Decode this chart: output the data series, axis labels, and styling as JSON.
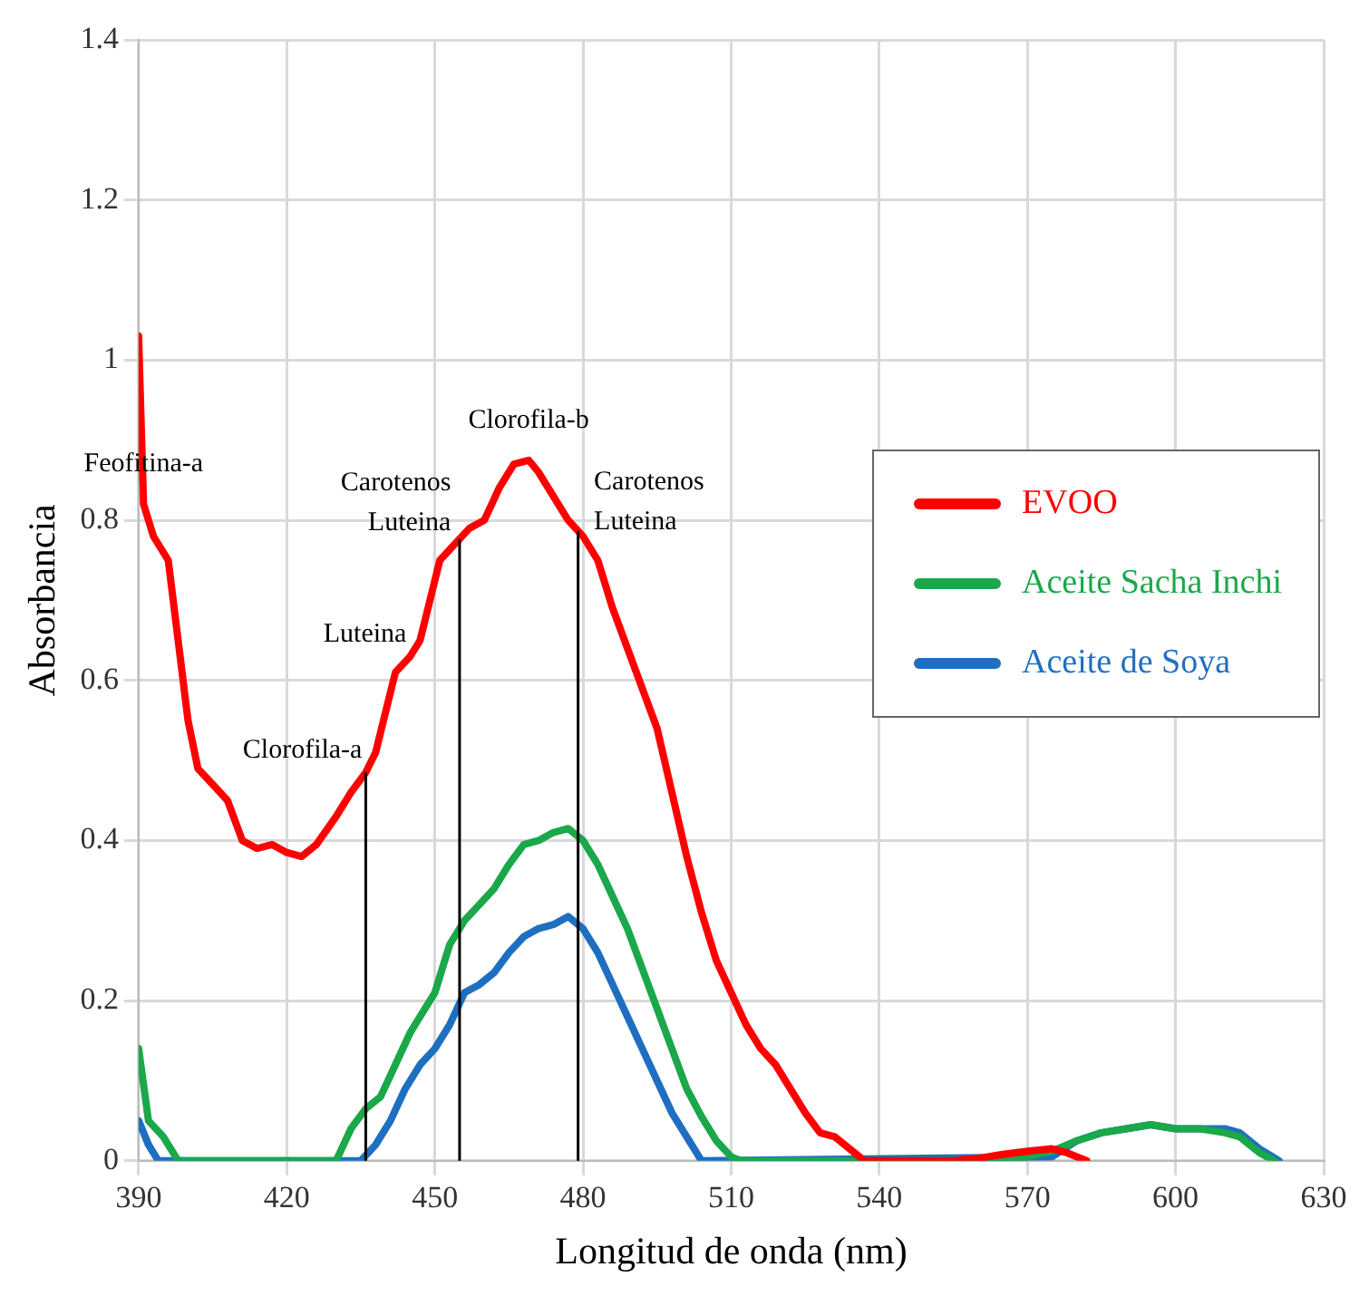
{
  "chart_data": {
    "type": "line",
    "xlabel": "Longitud de onda (nm)",
    "ylabel": "Absorbancia",
    "xlim": [
      390,
      630
    ],
    "xticks": [
      390,
      420,
      450,
      480,
      510,
      540,
      570,
      600,
      630
    ],
    "ylim": [
      0,
      1.4
    ],
    "yticks": [
      0,
      0.2,
      0.4,
      0.6,
      0.8,
      1,
      1.2,
      1.4
    ],
    "grid": true,
    "legend": "right",
    "marker": "none",
    "line_style": "solid",
    "series": [
      {
        "name": "EVOO",
        "color": "#ff0000",
        "x": [
          390,
          391,
          393,
          396,
          398,
          400,
          402,
          405,
          408,
          411,
          414,
          417,
          420,
          423,
          426,
          430,
          433,
          436,
          438,
          440,
          442,
          445,
          447,
          449,
          451,
          454,
          457,
          460,
          463,
          466,
          469,
          471,
          474,
          477,
          480,
          483,
          486,
          489,
          492,
          495,
          498,
          501,
          504,
          507,
          510,
          513,
          516,
          519,
          522,
          525,
          528,
          531,
          534,
          537,
          555,
          560,
          565,
          570,
          575,
          578,
          582
        ],
        "values": [
          1.03,
          0.82,
          0.78,
          0.75,
          0.65,
          0.55,
          0.49,
          0.47,
          0.45,
          0.4,
          0.39,
          0.395,
          0.385,
          0.38,
          0.395,
          0.43,
          0.46,
          0.485,
          0.51,
          0.56,
          0.61,
          0.63,
          0.65,
          0.7,
          0.75,
          0.77,
          0.79,
          0.8,
          0.84,
          0.87,
          0.875,
          0.86,
          0.83,
          0.8,
          0.78,
          0.75,
          0.69,
          0.64,
          0.59,
          0.54,
          0.46,
          0.38,
          0.31,
          0.25,
          0.21,
          0.17,
          0.14,
          0.12,
          0.09,
          0.06,
          0.035,
          0.03,
          0.015,
          0,
          0,
          0.003,
          0.008,
          0.012,
          0.015,
          0.01,
          0
        ]
      },
      {
        "name": "Aceite Sacha Inchi",
        "color": "#1aa84a",
        "x": [
          390,
          392,
          395,
          397,
          398,
          430,
          433,
          436,
          439,
          442,
          445,
          448,
          450,
          453,
          456,
          459,
          462,
          465,
          468,
          471,
          474,
          477,
          480,
          483,
          486,
          489,
          492,
          495,
          498,
          501,
          504,
          507,
          510,
          512,
          565,
          570,
          575,
          580,
          585,
          590,
          595,
          600,
          605,
          610,
          613,
          617,
          620
        ],
        "values": [
          0.14,
          0.05,
          0.03,
          0.01,
          0,
          0,
          0.04,
          0.065,
          0.08,
          0.12,
          0.16,
          0.19,
          0.21,
          0.27,
          0.3,
          0.32,
          0.34,
          0.37,
          0.395,
          0.4,
          0.41,
          0.415,
          0.4,
          0.37,
          0.33,
          0.29,
          0.24,
          0.19,
          0.14,
          0.09,
          0.055,
          0.025,
          0.005,
          0,
          0,
          0.005,
          0.012,
          0.025,
          0.035,
          0.04,
          0.045,
          0.04,
          0.04,
          0.035,
          0.03,
          0.01,
          0
        ]
      },
      {
        "name": "Aceite de Soya",
        "color": "#1f6fc0",
        "x": [
          390,
          392,
          394,
          435,
          438,
          441,
          444,
          447,
          450,
          453,
          456,
          459,
          462,
          465,
          468,
          471,
          474,
          477,
          480,
          483,
          486,
          489,
          492,
          495,
          498,
          501,
          504,
          575,
          580,
          585,
          590,
          595,
          600,
          605,
          610,
          613,
          617,
          621
        ],
        "values": [
          0.05,
          0.02,
          0,
          0,
          0.02,
          0.05,
          0.09,
          0.12,
          0.14,
          0.17,
          0.21,
          0.22,
          0.235,
          0.26,
          0.28,
          0.29,
          0.295,
          0.305,
          0.29,
          0.26,
          0.22,
          0.18,
          0.14,
          0.1,
          0.06,
          0.03,
          0,
          0.005,
          0.025,
          0.035,
          0.04,
          0.045,
          0.04,
          0.04,
          0.04,
          0.035,
          0.015,
          0
        ]
      }
    ],
    "ref_lines": [
      {
        "axis": "x",
        "value": 436,
        "color": "#000000"
      },
      {
        "axis": "x",
        "value": 455,
        "color": "#000000"
      },
      {
        "axis": "x",
        "value": 479,
        "color": "#000000"
      }
    ],
    "annotations": [
      {
        "text": "Feofitina-a",
        "x": 391,
        "y": 0.82
      },
      {
        "text": "Clorofila-a",
        "x": 436,
        "y": 0.485
      },
      {
        "text": "Luteina",
        "x": 445,
        "y": 0.63
      },
      {
        "text": "Carotenos\nLuteina",
        "x": 454,
        "y": 0.77
      },
      {
        "text": "Clorofila-b",
        "x": 469,
        "y": 0.875
      },
      {
        "text": "Carotenos\nLuteina",
        "x": 480,
        "y": 0.78
      }
    ]
  }
}
